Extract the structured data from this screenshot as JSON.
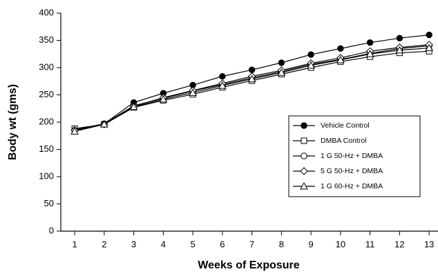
{
  "chart_data": {
    "type": "line",
    "xlabel": "Weeks of Exposure",
    "ylabel": "Body wt (gms)",
    "x": [
      1,
      2,
      3,
      4,
      5,
      6,
      7,
      8,
      9,
      10,
      11,
      12,
      13
    ],
    "xlim": [
      0.53,
      13.3
    ],
    "xticks": [
      1,
      2,
      3,
      4,
      5,
      6,
      7,
      8,
      9,
      10,
      11,
      12,
      13
    ],
    "ylim": [
      0,
      400
    ],
    "yticks": [
      0,
      50,
      100,
      150,
      200,
      250,
      300,
      350,
      400
    ],
    "series": [
      {
        "name": "Vehicle Control",
        "color": "#000000",
        "marker": "filled-circle",
        "values": [
          186,
          197,
          236,
          253,
          268,
          284,
          296,
          309,
          324,
          335,
          346,
          354,
          360
        ]
      },
      {
        "name": "DMBA Control",
        "color": "#000000",
        "marker": "square",
        "values": [
          188,
          196,
          227,
          240,
          251,
          264,
          276,
          288,
          300,
          311,
          320,
          327,
          330
        ]
      },
      {
        "name": "1 G 50-Hz + DMBA",
        "color": "#000000",
        "marker": "circle",
        "values": [
          185,
          197,
          230,
          244,
          257,
          269,
          281,
          293,
          306,
          315,
          326,
          335,
          340
        ]
      },
      {
        "name": "5 G 50-Hz + DMBA",
        "color": "#000000",
        "marker": "diamond",
        "values": [
          185,
          196,
          229,
          245,
          258,
          271,
          284,
          295,
          308,
          318,
          330,
          337,
          342
        ]
      },
      {
        "name": "1 G 60-Hz + DMBA",
        "color": "#000000",
        "marker": "triangle",
        "values": [
          183,
          196,
          228,
          242,
          254,
          267,
          279,
          291,
          304,
          314,
          325,
          332,
          336
        ]
      }
    ]
  }
}
